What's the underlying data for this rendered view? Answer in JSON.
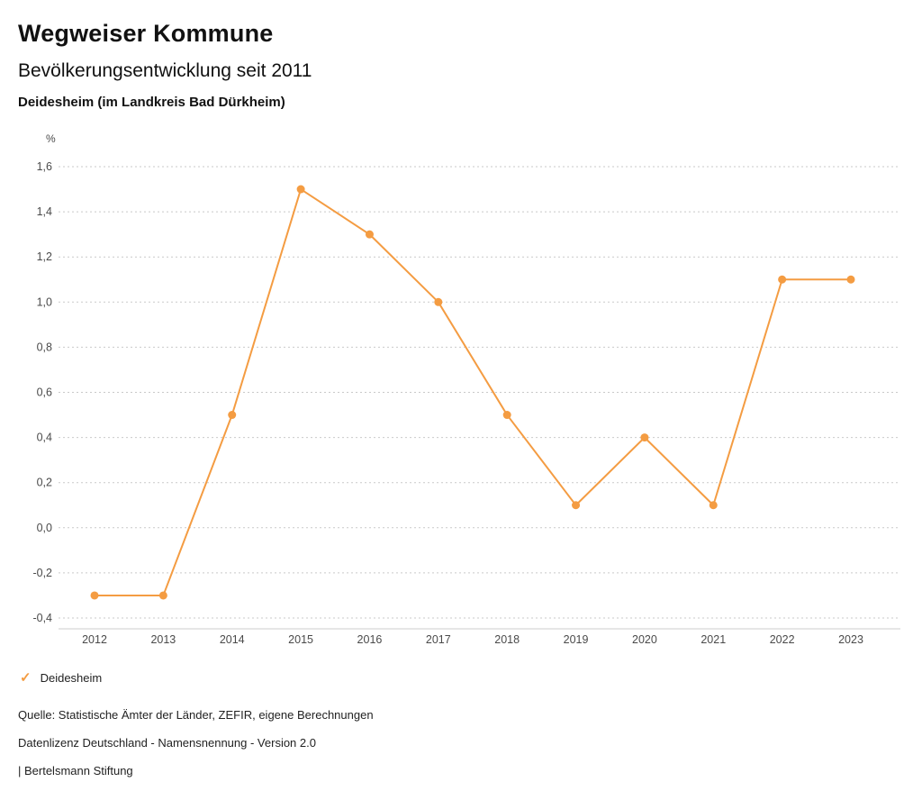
{
  "header": {
    "title": "Wegweiser Kommune",
    "subtitle": "Bevölkerungsentwicklung seit 2011",
    "region": "Deidesheim (im Landkreis Bad Dürkheim)"
  },
  "chart_data": {
    "type": "line",
    "title": "Bevölkerungsentwicklung seit 2011",
    "xlabel": "",
    "ylabel": "%",
    "categories": [
      "2012",
      "2013",
      "2014",
      "2015",
      "2016",
      "2017",
      "2018",
      "2019",
      "2020",
      "2021",
      "2022",
      "2023"
    ],
    "series": [
      {
        "name": "Deidesheim",
        "color": "#f49c42",
        "values": [
          -0.3,
          -0.3,
          0.5,
          1.5,
          1.3,
          1.0,
          0.5,
          0.1,
          0.4,
          0.1,
          1.1,
          1.1
        ]
      }
    ],
    "ylim": [
      -0.4,
      1.6
    ],
    "y_ticks": [
      1.6,
      1.4,
      1.2,
      1.0,
      0.8,
      0.6,
      0.4,
      0.2,
      0.0,
      -0.2,
      -0.4
    ],
    "y_tick_labels": [
      "1,6",
      "1,4",
      "1,2",
      "1,0",
      "0,8",
      "0,6",
      "0,4",
      "0,2",
      "0,0",
      "-0,2",
      "-0,4"
    ],
    "grid": true,
    "grid_color": "#c9c9c9",
    "axis_color": "#cccccc",
    "tick_text_color": "#4a4a4a",
    "legend_position": "bottom"
  },
  "legend": {
    "items": [
      {
        "label": "Deidesheim",
        "color": "#f49c42",
        "marker": "check-icon"
      }
    ]
  },
  "footer": {
    "source": "Quelle: Statistische Ämter der Länder, ZEFIR, eigene Berechnungen",
    "license": "Datenlizenz Deutschland - Namensnennung - Version 2.0",
    "attribution": "| Bertelsmann Stiftung"
  }
}
